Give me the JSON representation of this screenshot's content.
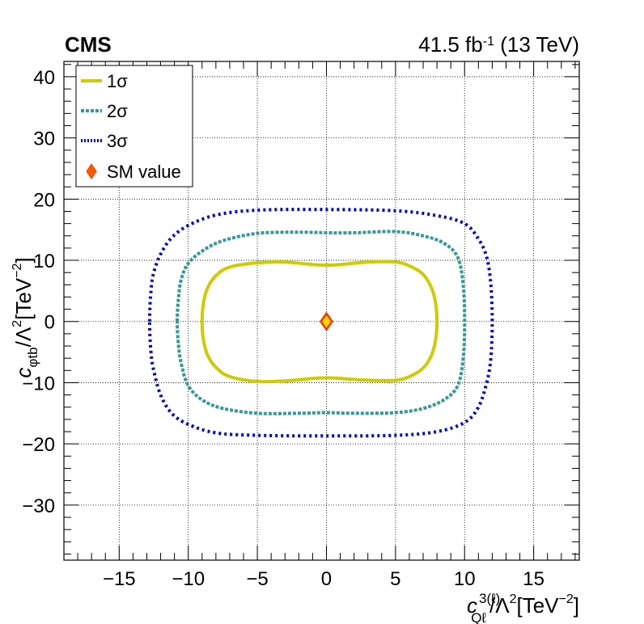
{
  "header": {
    "experiment": "CMS",
    "luminosity": "41.5 fb",
    "luminosity_exp": "-1",
    "energy": " (13 TeV)"
  },
  "chart_data": {
    "type": "scatter",
    "title": "",
    "xlabel": "c_{Qℓ}^{3(ℓ)}/Λ²[TeV⁻²]",
    "ylabel": "c_{φtb}/Λ²[TeV⁻²]",
    "xlim": [
      -19,
      18.3
    ],
    "ylim": [
      -39,
      42.5
    ],
    "x_ticks": [
      -15,
      -10,
      -5,
      0,
      5,
      10,
      15
    ],
    "x_tick_labels": [
      "−15",
      "−10",
      "−5",
      "0",
      "5",
      "10",
      "15"
    ],
    "y_ticks": [
      -30,
      -20,
      -10,
      0,
      10,
      20,
      30,
      40
    ],
    "y_tick_labels": [
      "−30",
      "−20",
      "−10",
      "0",
      "10",
      "20",
      "30",
      "40"
    ],
    "grid": true,
    "legend_position": "top-left",
    "colors": {
      "one_sigma": "#cccc00",
      "two_sigma": "#339999",
      "three_sigma": "#0000ee",
      "sm_fill": "#ffd700",
      "sm_edge": "#ff3300"
    },
    "series": [
      {
        "name": "1σ",
        "style": "solid",
        "points": [
          [
            -9,
            0
          ],
          [
            -8.9,
            3
          ],
          [
            -8.6,
            5.5
          ],
          [
            -8,
            7.5
          ],
          [
            -7,
            8.9
          ],
          [
            -5,
            9.6
          ],
          [
            -3,
            9.7
          ],
          [
            -1,
            9.3
          ],
          [
            0,
            9.2
          ],
          [
            1,
            9.3
          ],
          [
            3,
            9.7
          ],
          [
            5,
            9.7
          ],
          [
            6,
            9.1
          ],
          [
            7,
            7.7
          ],
          [
            7.6,
            5.5
          ],
          [
            7.9,
            3
          ],
          [
            8,
            0
          ],
          [
            7.9,
            -3
          ],
          [
            7.6,
            -5.5
          ],
          [
            7,
            -7.6
          ],
          [
            6,
            -9
          ],
          [
            5,
            -9.6
          ],
          [
            3,
            -9.6
          ],
          [
            1,
            -9.3
          ],
          [
            0,
            -9.2
          ],
          [
            -1,
            -9.3
          ],
          [
            -3,
            -9.7
          ],
          [
            -5,
            -9.8
          ],
          [
            -7,
            -9
          ],
          [
            -8,
            -7.5
          ],
          [
            -8.6,
            -5.5
          ],
          [
            -8.9,
            -3
          ],
          [
            -9,
            0
          ]
        ]
      },
      {
        "name": "2σ",
        "style": "dashed",
        "points": [
          [
            -10.8,
            0
          ],
          [
            -10.7,
            4
          ],
          [
            -10.5,
            7
          ],
          [
            -10,
            9.5
          ],
          [
            -9,
            11.5
          ],
          [
            -7.5,
            13.2
          ],
          [
            -5,
            14.4
          ],
          [
            -2,
            14.6
          ],
          [
            0,
            14.5
          ],
          [
            2,
            14.5
          ],
          [
            5,
            14.7
          ],
          [
            7,
            14
          ],
          [
            8.5,
            12.8
          ],
          [
            9.5,
            10.5
          ],
          [
            9.9,
            6
          ],
          [
            10,
            0
          ],
          [
            9.9,
            -6
          ],
          [
            9.5,
            -10.5
          ],
          [
            8.5,
            -12.8
          ],
          [
            7,
            -14.2
          ],
          [
            5,
            -14.9
          ],
          [
            2,
            -15
          ],
          [
            0,
            -14.9
          ],
          [
            -2,
            -15
          ],
          [
            -5,
            -15
          ],
          [
            -7.5,
            -14.2
          ],
          [
            -9,
            -12.8
          ],
          [
            -10,
            -10.5
          ],
          [
            -10.5,
            -7
          ],
          [
            -10.7,
            -4
          ],
          [
            -10.8,
            0
          ]
        ]
      },
      {
        "name": "3σ",
        "style": "dotted",
        "points": [
          [
            -12.8,
            0
          ],
          [
            -12.7,
            5
          ],
          [
            -12.5,
            8
          ],
          [
            -12,
            11
          ],
          [
            -11.2,
            13.7
          ],
          [
            -10,
            15.7
          ],
          [
            -8,
            17.4
          ],
          [
            -5,
            18.2
          ],
          [
            0,
            18.3
          ],
          [
            5,
            18.1
          ],
          [
            8,
            17.3
          ],
          [
            10,
            16
          ],
          [
            11,
            13.5
          ],
          [
            11.6,
            10.5
          ],
          [
            11.9,
            6
          ],
          [
            12,
            0
          ],
          [
            11.9,
            -6
          ],
          [
            11.6,
            -10
          ],
          [
            11,
            -14
          ],
          [
            10,
            -16.5
          ],
          [
            8,
            -18
          ],
          [
            5,
            -18.6
          ],
          [
            0,
            -18.7
          ],
          [
            -5,
            -18.6
          ],
          [
            -8,
            -18.2
          ],
          [
            -10,
            -16.8
          ],
          [
            -11.2,
            -15
          ],
          [
            -12,
            -12
          ],
          [
            -12.5,
            -8
          ],
          [
            -12.7,
            -5
          ],
          [
            -12.8,
            0
          ]
        ]
      }
    ],
    "sm_point": {
      "name": "SM value",
      "x": 0,
      "y": 0
    }
  }
}
